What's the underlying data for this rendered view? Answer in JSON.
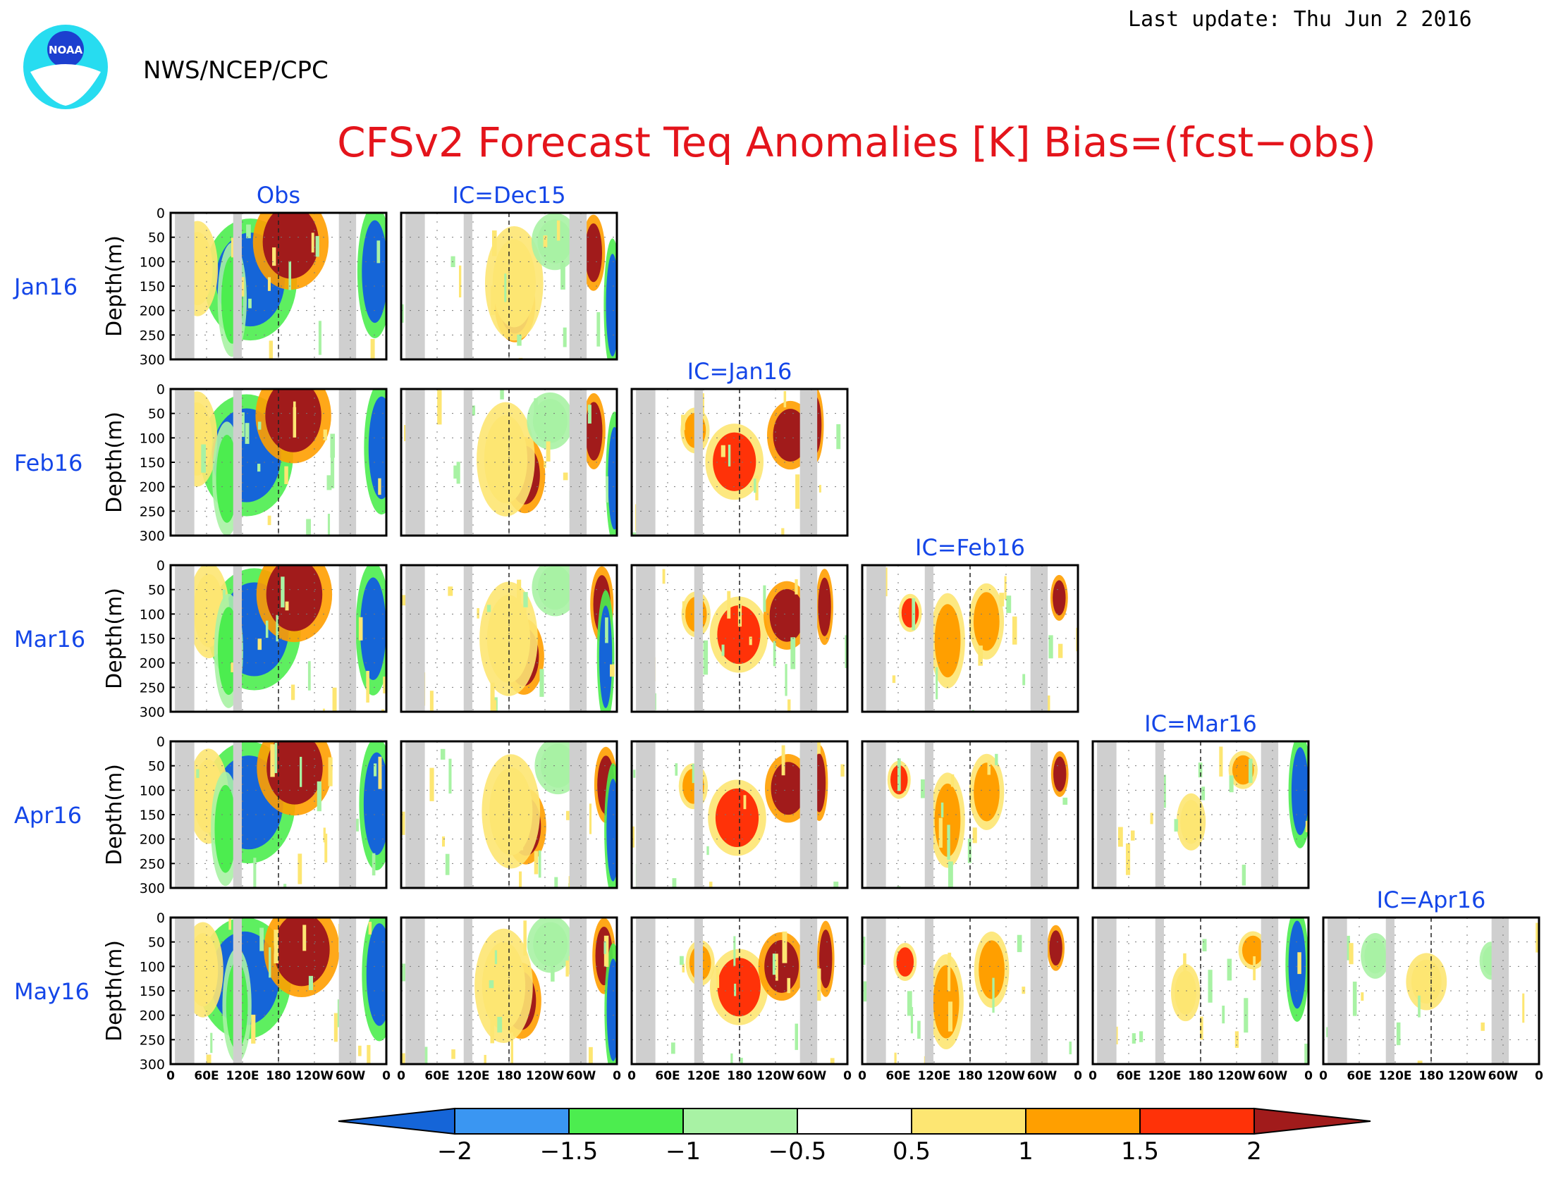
{
  "header": {
    "last_update": "Last update: Thu Jun 2 2016",
    "org": "NWS/NCEP/CPC",
    "title": "CFSv2 Forecast Teq Anomalies [K] Bias=(fcst−obs)",
    "logo_text": "NOAA"
  },
  "chart_data": {
    "type": "heatmap",
    "title": "CFSv2 Forecast Teq Anomalies [K] Bias=(fcst−obs)",
    "ylabel": "Depth(m)",
    "rows": [
      "Jan16",
      "Feb16",
      "Mar16",
      "Apr16",
      "May16"
    ],
    "columns": [
      "Obs",
      "IC=Dec15",
      "IC=Jan16",
      "IC=Feb16",
      "IC=Mar16",
      "IC=Apr16"
    ],
    "x_ticks": [
      "0",
      "60E",
      "120E",
      "180",
      "120W",
      "60W",
      "0"
    ],
    "y_ticks": [
      "0",
      "50",
      "100",
      "150",
      "200",
      "250",
      "300"
    ],
    "ylim": [
      0,
      300
    ],
    "colorbar": {
      "ticks": [
        "−2",
        "−1.5",
        "−1",
        "−0.5",
        "0.5",
        "1",
        "1.5",
        "2"
      ],
      "colors": [
        "#1565d8",
        "#3a96f2",
        "#4ced4f",
        "#a8f2a4",
        "#ffffff",
        "#fde672",
        "#ff9f00",
        "#ff3208",
        "#a11b1b"
      ]
    }
  },
  "colors": {
    "title": "#e4141b",
    "labels": "#1446e8",
    "land": "#cfcfcf"
  }
}
